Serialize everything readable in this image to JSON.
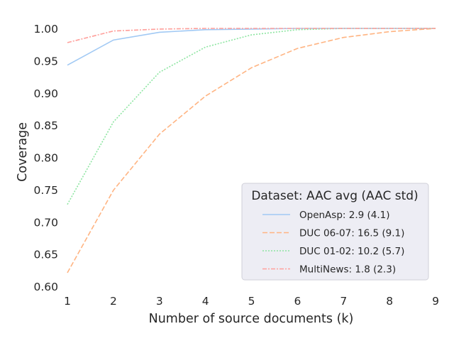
{
  "chart_data": {
    "type": "line",
    "title": "",
    "xlabel": "Number of source documents (k)",
    "ylabel": "Coverage",
    "xlim": [
      1,
      9
    ],
    "ylim": [
      0.6,
      1.0
    ],
    "x": [
      1,
      2,
      3,
      4,
      5,
      6,
      7,
      8,
      9
    ],
    "xticks": [
      "1",
      "2",
      "3",
      "4",
      "5",
      "6",
      "7",
      "8",
      "9"
    ],
    "yticks": [
      "0.60",
      "0.65",
      "0.70",
      "0.75",
      "0.80",
      "0.85",
      "0.90",
      "0.95",
      "1.00"
    ],
    "grid": false,
    "legend": {
      "title": "Dataset: AAC avg (AAC std)",
      "placement": "lower-right"
    },
    "series": [
      {
        "name": "OpenAsp: 2.9 (4.1)",
        "color": "#a1c9f4",
        "style": "solid",
        "values": [
          0.943,
          0.982,
          0.994,
          0.998,
          0.999,
          1.0,
          1.0,
          1.0,
          1.0
        ]
      },
      {
        "name": "DUC 06-07: 16.5 (9.1)",
        "color": "#ffb482",
        "style": "dashed",
        "values": [
          0.621,
          0.749,
          0.836,
          0.895,
          0.939,
          0.969,
          0.986,
          0.995,
          1.0
        ]
      },
      {
        "name": "DUC 01-02: 10.2 (5.7)",
        "color": "#8de5a1",
        "style": "dotted",
        "values": [
          0.727,
          0.855,
          0.932,
          0.971,
          0.99,
          0.998,
          1.0,
          1.0,
          1.0
        ]
      },
      {
        "name": "MultiNews: 1.8 (2.3)",
        "color": "#ff9f9b",
        "style": "dashdot",
        "values": [
          0.978,
          0.996,
          0.999,
          1.0,
          1.0,
          1.0,
          1.0,
          1.0,
          1.0
        ]
      }
    ]
  }
}
